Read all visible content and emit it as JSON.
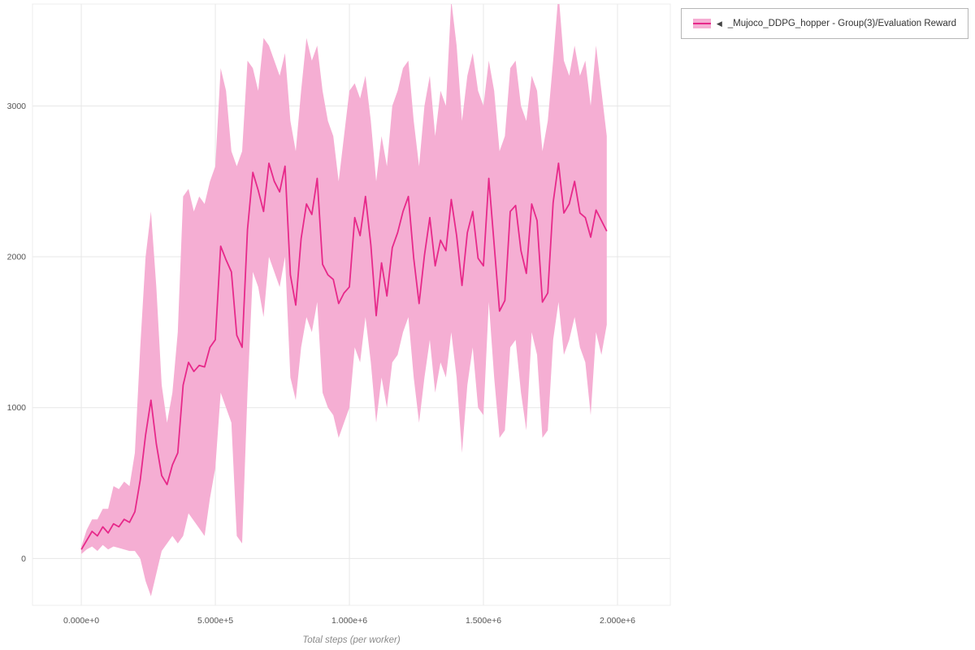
{
  "legend": {
    "collapse_icon": "◀",
    "label": "_Mujoco_DDPG_hopper - Group(3)/Evaluation Reward"
  },
  "chart_data": {
    "type": "line",
    "title": "",
    "xlabel": "Total steps (per worker)",
    "ylabel": "",
    "legend_position": "top-right",
    "grid": true,
    "xlim": [
      -182000,
      2197000
    ],
    "ylim": [
      -310,
      3675
    ],
    "x_ticks": [
      {
        "value": 0,
        "label": "0.000e+0"
      },
      {
        "value": 500000,
        "label": "5.000e+5"
      },
      {
        "value": 1000000,
        "label": "1.000e+6"
      },
      {
        "value": 1500000,
        "label": "1.500e+6"
      },
      {
        "value": 2000000,
        "label": "2.000e+6"
      }
    ],
    "y_ticks": [
      {
        "value": 0,
        "label": "0"
      },
      {
        "value": 1000,
        "label": "1000"
      },
      {
        "value": 2000,
        "label": "2000"
      },
      {
        "value": 3000,
        "label": "3000"
      }
    ],
    "colors": {
      "line": "#e7298a",
      "band": "#f5aed3",
      "grid": "#e7e7e7",
      "border": "#ececec",
      "tick_text": "#555555"
    },
    "series": [
      {
        "name": "_Mujoco_DDPG_hopper - Group(3)/Evaluation Reward",
        "x": [
          0,
          20000,
          40000,
          60000,
          80000,
          100000,
          120000,
          140000,
          160000,
          180000,
          200000,
          220000,
          240000,
          260000,
          280000,
          300000,
          320000,
          340000,
          360000,
          380000,
          400000,
          420000,
          440000,
          460000,
          480000,
          500000,
          520000,
          540000,
          560000,
          580000,
          600000,
          620000,
          640000,
          660000,
          680000,
          700000,
          720000,
          740000,
          760000,
          780000,
          800000,
          820000,
          840000,
          860000,
          880000,
          900000,
          920000,
          940000,
          960000,
          980000,
          1000000,
          1020000,
          1040000,
          1060000,
          1080000,
          1100000,
          1120000,
          1140000,
          1160000,
          1180000,
          1200000,
          1220000,
          1240000,
          1260000,
          1280000,
          1300000,
          1320000,
          1340000,
          1360000,
          1380000,
          1400000,
          1420000,
          1440000,
          1460000,
          1480000,
          1500000,
          1520000,
          1540000,
          1560000,
          1580000,
          1600000,
          1620000,
          1640000,
          1660000,
          1680000,
          1700000,
          1720000,
          1740000,
          1760000,
          1780000,
          1800000,
          1820000,
          1840000,
          1860000,
          1880000,
          1900000,
          1920000,
          1940000,
          1960000
        ],
        "mean": [
          60,
          120,
          180,
          150,
          210,
          170,
          230,
          210,
          260,
          240,
          310,
          520,
          820,
          1050,
          760,
          550,
          490,
          620,
          700,
          1150,
          1300,
          1240,
          1280,
          1270,
          1400,
          1450,
          2070,
          1980,
          1900,
          1480,
          1400,
          2180,
          2560,
          2440,
          2300,
          2620,
          2500,
          2430,
          2600,
          1880,
          1680,
          2120,
          2350,
          2280,
          2520,
          1950,
          1880,
          1850,
          1690,
          1760,
          1800,
          2260,
          2140,
          2400,
          2080,
          1610,
          1960,
          1740,
          2060,
          2160,
          2300,
          2400,
          1990,
          1690,
          2010,
          2260,
          1940,
          2110,
          2040,
          2380,
          2140,
          1810,
          2160,
          2300,
          1990,
          1940,
          2520,
          2080,
          1640,
          1710,
          2300,
          2340,
          2040,
          1890,
          2350,
          2240,
          1700,
          1760,
          2360,
          2620,
          2290,
          2350,
          2500,
          2290,
          2260,
          2130,
          2310,
          2240,
          2170
        ],
        "band_upper": [
          80,
          190,
          260,
          260,
          330,
          330,
          480,
          460,
          510,
          480,
          700,
          1400,
          2000,
          2300,
          1800,
          1150,
          900,
          1100,
          1500,
          2400,
          2450,
          2300,
          2400,
          2350,
          2500,
          2600,
          3250,
          3100,
          2700,
          2600,
          2700,
          3300,
          3250,
          3100,
          3450,
          3400,
          3300,
          3200,
          3350,
          2900,
          2700,
          3100,
          3450,
          3300,
          3400,
          3100,
          2900,
          2800,
          2500,
          2800,
          3100,
          3150,
          3050,
          3200,
          2900,
          2500,
          2800,
          2600,
          3000,
          3100,
          3250,
          3300,
          2900,
          2600,
          3000,
          3200,
          2800,
          3100,
          3000,
          3700,
          3400,
          2900,
          3200,
          3350,
          3100,
          3000,
          3300,
          3100,
          2700,
          2800,
          3250,
          3300,
          3000,
          2900,
          3200,
          3100,
          2700,
          2900,
          3300,
          3750,
          3300,
          3200,
          3400,
          3200,
          3300,
          3000,
          3400,
          3100,
          2800
        ],
        "band_lower": [
          30,
          60,
          80,
          50,
          90,
          60,
          80,
          70,
          60,
          50,
          50,
          0,
          -150,
          -250,
          -100,
          50,
          100,
          150,
          100,
          150,
          300,
          250,
          200,
          150,
          400,
          600,
          1100,
          1000,
          900,
          150,
          100,
          1100,
          1900,
          1800,
          1600,
          2000,
          1900,
          1800,
          2000,
          1200,
          1050,
          1400,
          1600,
          1500,
          1700,
          1100,
          1000,
          950,
          800,
          900,
          1000,
          1400,
          1300,
          1600,
          1300,
          900,
          1200,
          1000,
          1300,
          1350,
          1500,
          1600,
          1200,
          900,
          1200,
          1450,
          1100,
          1300,
          1200,
          1500,
          1200,
          700,
          1150,
          1400,
          1000,
          950,
          1700,
          1200,
          800,
          850,
          1400,
          1450,
          1100,
          850,
          1500,
          1350,
          800,
          850,
          1450,
          1700,
          1350,
          1450,
          1600,
          1400,
          1300,
          950,
          1500,
          1350,
          1550
        ]
      }
    ]
  }
}
